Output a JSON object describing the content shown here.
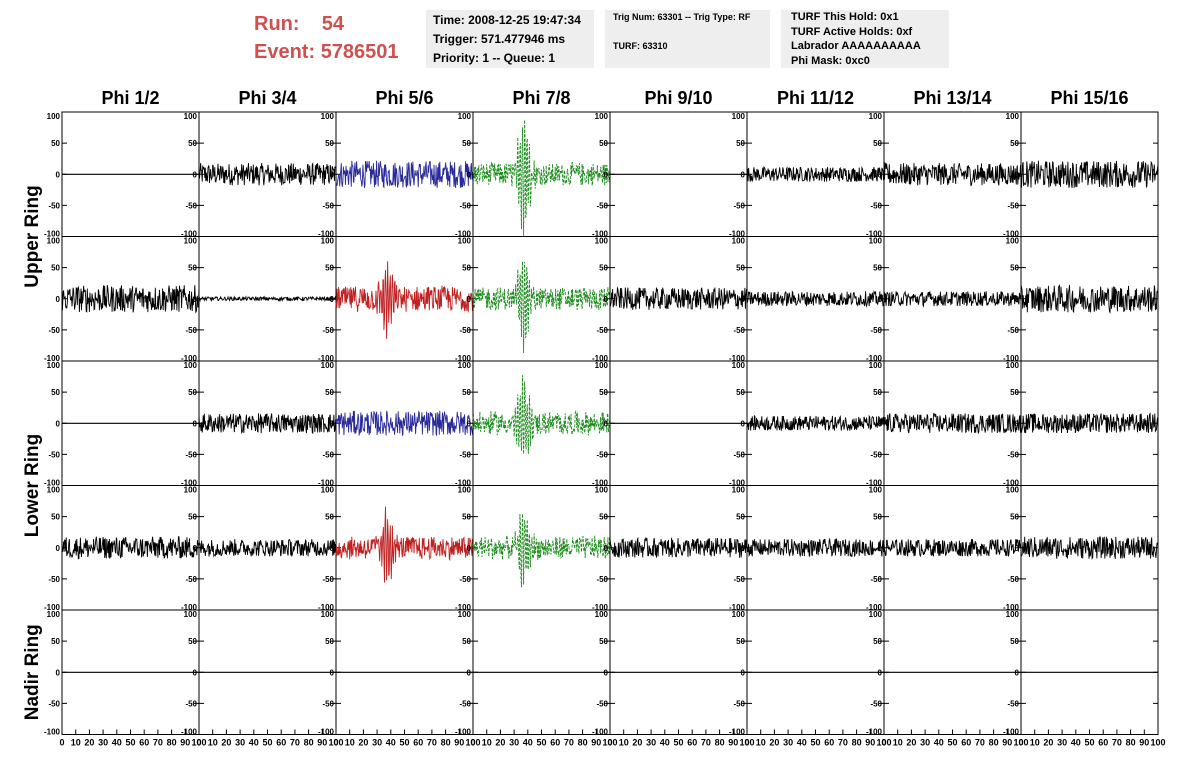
{
  "header": {
    "run_label": "Run:",
    "run_value": "54",
    "event_label": "Event:",
    "event_value": "5786501"
  },
  "info_box_1": {
    "time": "Time: 2008-12-25 19:47:34",
    "trigger": "Trigger: 571.477946 ms",
    "priority": "Priority: 1 -- Queue: 1"
  },
  "info_box_2": {
    "trig_num": "Trig Num: 63301 -- Trig Type: RF",
    "turf": "TURF: 63310"
  },
  "info_box_3": {
    "this_hold": "TURF This Hold: 0x1",
    "active_holds": "TURF Active Holds: 0xf",
    "labrador": "Labrador AAAAAAAAAA",
    "phi_mask": "Phi Mask: 0xc0"
  },
  "chart_data": {
    "type": "line",
    "columns": [
      "Phi 1/2",
      "Phi 3/4",
      "Phi 5/6",
      "Phi 7/8",
      "Phi 9/10",
      "Phi 11/12",
      "Phi 13/14",
      "Phi 15/16"
    ],
    "row_groups": [
      "Upper Ring",
      "Lower Ring",
      "Nadir Ring"
    ],
    "rows": 5,
    "xlim": [
      0,
      100
    ],
    "ylim": [
      -100,
      100
    ],
    "y_ticks": [
      100,
      50,
      0,
      -50,
      -100
    ],
    "x_ticks": [
      0,
      10,
      20,
      30,
      40,
      50,
      60,
      70,
      80,
      90,
      100
    ],
    "colors": {
      "trace": "#000000",
      "blue": "#2a2a9a",
      "red": "#c02020",
      "green": "#1a8a1a"
    },
    "panels": [
      [
        {
          "style": "flat",
          "amp": 0
        },
        {
          "style": "noise",
          "amp": 18
        },
        {
          "style": "noise",
          "amp": 22,
          "color": "blue"
        },
        {
          "style": "pulse",
          "amp": 20,
          "peak": 95,
          "center": 37,
          "color": "green",
          "dashed": true
        },
        {
          "style": "flat",
          "amp": 0
        },
        {
          "style": "noise",
          "amp": 12
        },
        {
          "style": "noise",
          "amp": 18
        },
        {
          "style": "noise",
          "amp": 22
        }
      ],
      [
        {
          "style": "noise",
          "amp": 22
        },
        {
          "style": "noise",
          "amp": 3
        },
        {
          "style": "pulse",
          "amp": 22,
          "peak": 60,
          "center": 37,
          "color": "red"
        },
        {
          "style": "pulse",
          "amp": 20,
          "peak": 70,
          "center": 37,
          "color": "green",
          "dashed": true
        },
        {
          "style": "noise",
          "amp": 18
        },
        {
          "style": "noise",
          "amp": 12
        },
        {
          "style": "noise",
          "amp": 12
        },
        {
          "style": "noise",
          "amp": 22
        }
      ],
      [
        {
          "style": "flat",
          "amp": 0
        },
        {
          "style": "noise",
          "amp": 16
        },
        {
          "style": "noise",
          "amp": 20,
          "color": "blue"
        },
        {
          "style": "pulse",
          "amp": 20,
          "peak": 65,
          "center": 37,
          "color": "green",
          "dashed": true
        },
        {
          "style": "flat",
          "amp": 0
        },
        {
          "style": "noise",
          "amp": 12
        },
        {
          "style": "noise",
          "amp": 16
        },
        {
          "style": "noise",
          "amp": 16
        }
      ],
      [
        {
          "style": "noise",
          "amp": 18
        },
        {
          "style": "noise",
          "amp": 14
        },
        {
          "style": "pulse",
          "amp": 20,
          "peak": 58,
          "center": 37,
          "color": "red"
        },
        {
          "style": "pulse",
          "amp": 20,
          "peak": 60,
          "center": 37,
          "color": "green",
          "dashed": true
        },
        {
          "style": "noise",
          "amp": 16
        },
        {
          "style": "noise",
          "amp": 14
        },
        {
          "style": "noise",
          "amp": 14
        },
        {
          "style": "noise",
          "amp": 18
        }
      ],
      [
        {
          "style": "flat",
          "amp": 0
        },
        {
          "style": "flat",
          "amp": 0
        },
        {
          "style": "flat",
          "amp": 0
        },
        {
          "style": "flat",
          "amp": 0
        },
        {
          "style": "flat",
          "amp": 0
        },
        {
          "style": "flat",
          "amp": 0
        },
        {
          "style": "flat",
          "amp": 0
        },
        {
          "style": "flat",
          "amp": 0
        }
      ]
    ]
  }
}
